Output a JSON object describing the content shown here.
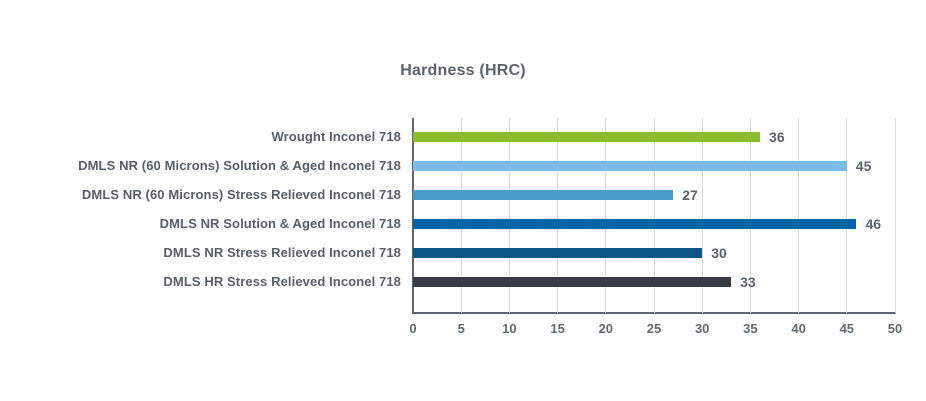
{
  "title": "Hardness (HRC)",
  "chart_data": {
    "type": "bar",
    "orientation": "horizontal",
    "title": "Hardness (HRC)",
    "categories": [
      "Wrought Inconel 718",
      "DMLS NR (60 Microns) Solution & Aged Inconel 718",
      "DMLS NR (60 Microns) Stress Relieved Inconel 718",
      "DMLS NR Solution & Aged Inconel 718",
      "DMLS NR Stress Relieved Inconel 718",
      "DMLS HR Stress Relieved Inconel 718"
    ],
    "values": [
      36,
      45,
      27,
      46,
      30,
      33
    ],
    "bar_colors": [
      "#8abd2e",
      "#7bbde8",
      "#4a9cca",
      "#0566a7",
      "#0e5587",
      "#363b46"
    ],
    "value_labels": [
      "36",
      "45",
      "27",
      "46",
      "30",
      "33"
    ],
    "xlabel": "",
    "ylabel": "",
    "xlim": [
      0,
      50
    ],
    "xticks": [
      0,
      5,
      10,
      15,
      20,
      25,
      30,
      35,
      40,
      45,
      50
    ],
    "grid": "vertical",
    "legend": false
  },
  "colors": {
    "text": "#5a646e",
    "tick": "#5f6a73",
    "grid": "#d9dbdd",
    "axis": "#5f666f",
    "background": "#ffffff"
  }
}
